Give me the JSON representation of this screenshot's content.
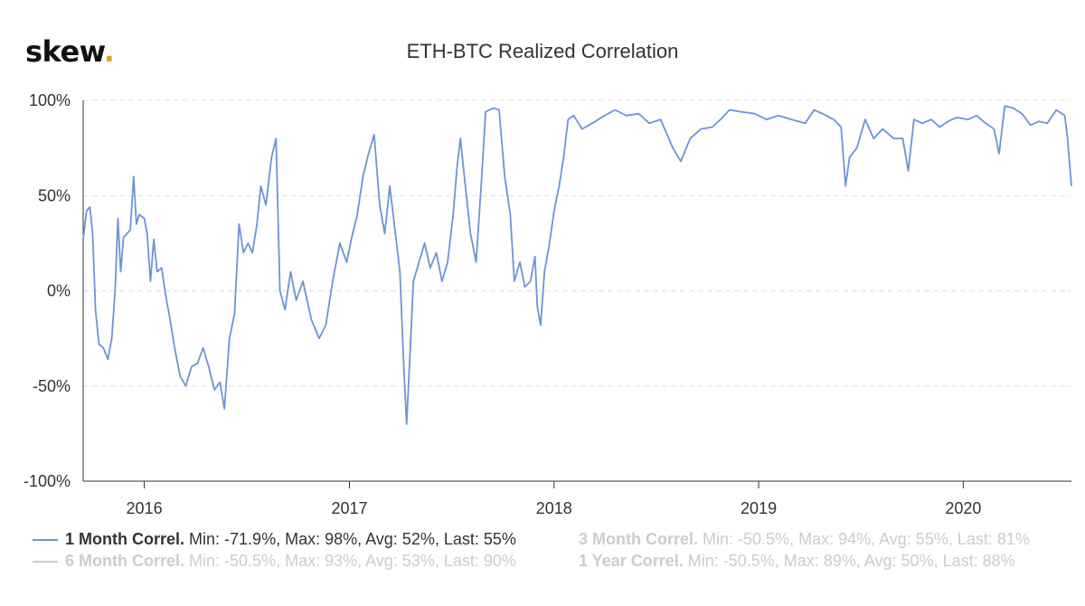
{
  "brand": {
    "name": "skew",
    "dot": "."
  },
  "title": "ETH-BTC Realized Correlation",
  "colors": {
    "series": "#6c94d8",
    "grid": "#e0e0e0",
    "axis": "#333333",
    "inactive": "#cccccc",
    "accent": "#e0a526"
  },
  "legend": [
    {
      "name": "1 Month Correl.",
      "stats": "Min: -71.9%, Max: 98%, Avg: 52%, Last: 55%",
      "active": true
    },
    {
      "name": "3 Month Correl.",
      "stats": "Min: -50.5%, Max: 94%, Avg: 55%, Last: 81%",
      "active": false
    },
    {
      "name": "6 Month Correl.",
      "stats": "Min: -50.5%, Max: 93%, Avg: 53%, Last: 90%",
      "active": false
    },
    {
      "name": "1 Year Correl.",
      "stats": "Min: -50.5%, Max: 89%, Avg: 50%, Last: 88%",
      "active": false
    }
  ],
  "chart_data": {
    "type": "line",
    "title": "ETH-BTC Realized Correlation",
    "xlabel": "",
    "ylabel": "",
    "xlim": [
      "2015-09-14",
      "2020-07-12"
    ],
    "ylim": [
      -100,
      100
    ],
    "y_ticks": [
      "100%",
      "50%",
      "0%",
      "-50%",
      "-100%"
    ],
    "y_tick_values": [
      100,
      50,
      0,
      -50,
      -100
    ],
    "x_ticks": [
      {
        "label": "2016",
        "date": "2016-01-01"
      },
      {
        "label": "2017",
        "date": "2017-01-01"
      },
      {
        "label": "2018",
        "date": "2018-01-01"
      },
      {
        "label": "2019",
        "date": "2019-01-01"
      },
      {
        "label": "2020",
        "date": "2020-01-01"
      }
    ],
    "grid": true,
    "legend_position": "bottom",
    "series": [
      {
        "name": "1 Month Correl.",
        "points": [
          [
            "2015-09-14",
            27
          ],
          [
            "2015-09-20",
            42
          ],
          [
            "2015-09-26",
            44
          ],
          [
            "2015-10-01",
            30
          ],
          [
            "2015-10-06",
            -10
          ],
          [
            "2015-10-12",
            -28
          ],
          [
            "2015-10-20",
            -30
          ],
          [
            "2015-10-28",
            -36
          ],
          [
            "2015-11-04",
            -25
          ],
          [
            "2015-11-10",
            0
          ],
          [
            "2015-11-15",
            38
          ],
          [
            "2015-11-20",
            10
          ],
          [
            "2015-11-25",
            28
          ],
          [
            "2015-12-01",
            30
          ],
          [
            "2015-12-07",
            32
          ],
          [
            "2015-12-13",
            60
          ],
          [
            "2015-12-18",
            35
          ],
          [
            "2015-12-23",
            40
          ],
          [
            "2016-01-01",
            38
          ],
          [
            "2016-01-06",
            30
          ],
          [
            "2016-01-12",
            5
          ],
          [
            "2016-01-18",
            27
          ],
          [
            "2016-01-24",
            10
          ],
          [
            "2016-02-01",
            12
          ],
          [
            "2016-02-08",
            -2
          ],
          [
            "2016-02-16",
            -15
          ],
          [
            "2016-02-24",
            -30
          ],
          [
            "2016-03-05",
            -45
          ],
          [
            "2016-03-15",
            -50
          ],
          [
            "2016-03-25",
            -40
          ],
          [
            "2016-04-05",
            -38
          ],
          [
            "2016-04-15",
            -30
          ],
          [
            "2016-04-25",
            -40
          ],
          [
            "2016-05-05",
            -52
          ],
          [
            "2016-05-15",
            -48
          ],
          [
            "2016-05-23",
            -62
          ],
          [
            "2016-06-01",
            -25
          ],
          [
            "2016-06-10",
            -12
          ],
          [
            "2016-06-18",
            35
          ],
          [
            "2016-06-26",
            20
          ],
          [
            "2016-07-04",
            25
          ],
          [
            "2016-07-12",
            20
          ],
          [
            "2016-07-20",
            35
          ],
          [
            "2016-07-27",
            55
          ],
          [
            "2016-08-05",
            45
          ],
          [
            "2016-08-15",
            70
          ],
          [
            "2016-08-23",
            80
          ],
          [
            "2016-08-30",
            0
          ],
          [
            "2016-09-08",
            -10
          ],
          [
            "2016-09-18",
            10
          ],
          [
            "2016-09-28",
            -5
          ],
          [
            "2016-10-10",
            5
          ],
          [
            "2016-10-25",
            -15
          ],
          [
            "2016-11-08",
            -25
          ],
          [
            "2016-11-20",
            -18
          ],
          [
            "2016-12-02",
            5
          ],
          [
            "2016-12-15",
            25
          ],
          [
            "2016-12-27",
            15
          ],
          [
            "2017-01-05",
            28
          ],
          [
            "2017-01-15",
            40
          ],
          [
            "2017-01-25",
            60
          ],
          [
            "2017-02-04",
            72
          ],
          [
            "2017-02-14",
            82
          ],
          [
            "2017-02-24",
            45
          ],
          [
            "2017-03-05",
            30
          ],
          [
            "2017-03-14",
            55
          ],
          [
            "2017-03-22",
            35
          ],
          [
            "2017-04-01",
            10
          ],
          [
            "2017-04-08",
            -40
          ],
          [
            "2017-04-13",
            -70
          ],
          [
            "2017-04-18",
            -40
          ],
          [
            "2017-04-25",
            5
          ],
          [
            "2017-05-05",
            15
          ],
          [
            "2017-05-15",
            25
          ],
          [
            "2017-05-25",
            12
          ],
          [
            "2017-06-05",
            20
          ],
          [
            "2017-06-15",
            5
          ],
          [
            "2017-06-25",
            15
          ],
          [
            "2017-07-05",
            40
          ],
          [
            "2017-07-12",
            65
          ],
          [
            "2017-07-18",
            80
          ],
          [
            "2017-07-25",
            60
          ],
          [
            "2017-08-05",
            30
          ],
          [
            "2017-08-15",
            15
          ],
          [
            "2017-08-25",
            60
          ],
          [
            "2017-09-01",
            94
          ],
          [
            "2017-09-15",
            96
          ],
          [
            "2017-09-25",
            95
          ],
          [
            "2017-10-05",
            60
          ],
          [
            "2017-10-15",
            40
          ],
          [
            "2017-10-22",
            5
          ],
          [
            "2017-11-01",
            15
          ],
          [
            "2017-11-10",
            2
          ],
          [
            "2017-11-20",
            5
          ],
          [
            "2017-11-28",
            18
          ],
          [
            "2017-12-02",
            -8
          ],
          [
            "2017-12-08",
            -18
          ],
          [
            "2017-12-15",
            10
          ],
          [
            "2017-12-24",
            25
          ],
          [
            "2018-01-01",
            42
          ],
          [
            "2018-01-10",
            55
          ],
          [
            "2018-01-18",
            70
          ],
          [
            "2018-01-26",
            90
          ],
          [
            "2018-02-05",
            92
          ],
          [
            "2018-02-20",
            85
          ],
          [
            "2018-03-10",
            88
          ],
          [
            "2018-04-01",
            92
          ],
          [
            "2018-04-20",
            95
          ],
          [
            "2018-05-10",
            92
          ],
          [
            "2018-06-01",
            93
          ],
          [
            "2018-06-20",
            88
          ],
          [
            "2018-07-10",
            90
          ],
          [
            "2018-08-01",
            75
          ],
          [
            "2018-08-15",
            68
          ],
          [
            "2018-09-01",
            80
          ],
          [
            "2018-09-20",
            85
          ],
          [
            "2018-10-10",
            86
          ],
          [
            "2018-10-25",
            90
          ],
          [
            "2018-11-10",
            95
          ],
          [
            "2018-12-01",
            94
          ],
          [
            "2018-12-25",
            93
          ],
          [
            "2019-01-15",
            90
          ],
          [
            "2019-02-05",
            92
          ],
          [
            "2019-03-01",
            90
          ],
          [
            "2019-03-25",
            88
          ],
          [
            "2019-04-10",
            95
          ],
          [
            "2019-04-25",
            93
          ],
          [
            "2019-05-15",
            90
          ],
          [
            "2019-05-28",
            86
          ],
          [
            "2019-06-05",
            55
          ],
          [
            "2019-06-12",
            70
          ],
          [
            "2019-06-25",
            75
          ],
          [
            "2019-07-10",
            90
          ],
          [
            "2019-07-25",
            80
          ],
          [
            "2019-08-10",
            85
          ],
          [
            "2019-08-30",
            80
          ],
          [
            "2019-09-15",
            80
          ],
          [
            "2019-09-25",
            63
          ],
          [
            "2019-10-05",
            90
          ],
          [
            "2019-10-20",
            88
          ],
          [
            "2019-11-05",
            90
          ],
          [
            "2019-11-20",
            86
          ],
          [
            "2019-12-05",
            89
          ],
          [
            "2019-12-20",
            91
          ],
          [
            "2020-01-10",
            90
          ],
          [
            "2020-01-25",
            92
          ],
          [
            "2020-02-10",
            88
          ],
          [
            "2020-02-25",
            85
          ],
          [
            "2020-03-05",
            72
          ],
          [
            "2020-03-15",
            97
          ],
          [
            "2020-03-30",
            96
          ],
          [
            "2020-04-15",
            93
          ],
          [
            "2020-04-30",
            87
          ],
          [
            "2020-05-15",
            89
          ],
          [
            "2020-05-30",
            88
          ],
          [
            "2020-06-15",
            95
          ],
          [
            "2020-06-30",
            92
          ],
          [
            "2020-07-05",
            80
          ],
          [
            "2020-07-12",
            55
          ]
        ]
      }
    ]
  }
}
